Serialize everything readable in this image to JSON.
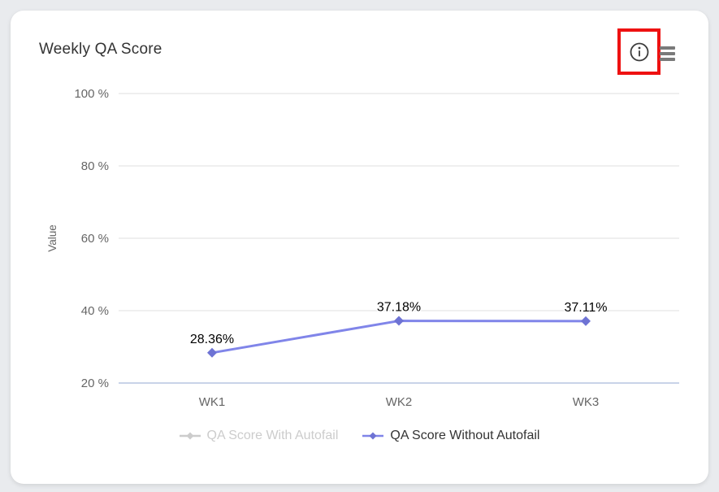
{
  "page": {
    "background_color": "#e9ebee"
  },
  "card": {
    "title": "Weekly QA Score",
    "toolbar": {
      "info_icon": "info-circle-icon",
      "menu_icon": "hamburger-menu-icon",
      "highlight_color": "#ee1111",
      "icon_color": "#3c3c3c",
      "menu_color": "#7a7a7a"
    }
  },
  "chart_data": {
    "type": "line",
    "title": "Weekly QA Score",
    "categories": [
      "WK1",
      "WK2",
      "WK3"
    ],
    "series": [
      {
        "name": "QA Score With Autofail",
        "visible": false,
        "color": "#cccccc",
        "marker_color": "#cccccc",
        "values": [],
        "data_labels": []
      },
      {
        "name": "QA Score Without Autofail",
        "visible": true,
        "color": "#8085e9",
        "marker_color": "#6e73d4",
        "values": [
          28.36,
          37.18,
          37.11
        ],
        "data_labels": [
          "28.36%",
          "37.18%",
          "37.11%"
        ]
      }
    ],
    "xlabel": "",
    "ylabel": "Value",
    "ylim": [
      20,
      100
    ],
    "yticks": [
      100,
      80,
      60,
      40,
      20
    ],
    "ytick_labels": [
      "100 %",
      "80 %",
      "60 %",
      "40 %",
      "20 %"
    ],
    "grid": true,
    "legend_position": "bottom",
    "grid_color": "#efefef",
    "axis_line_color": "#c9d3e8",
    "tick_label_color": "#666666",
    "axis_title_color": "#666666",
    "data_label_color": "#000000",
    "legend_active_text_color": "#333333",
    "legend_disabled_color": "#cccccc"
  }
}
